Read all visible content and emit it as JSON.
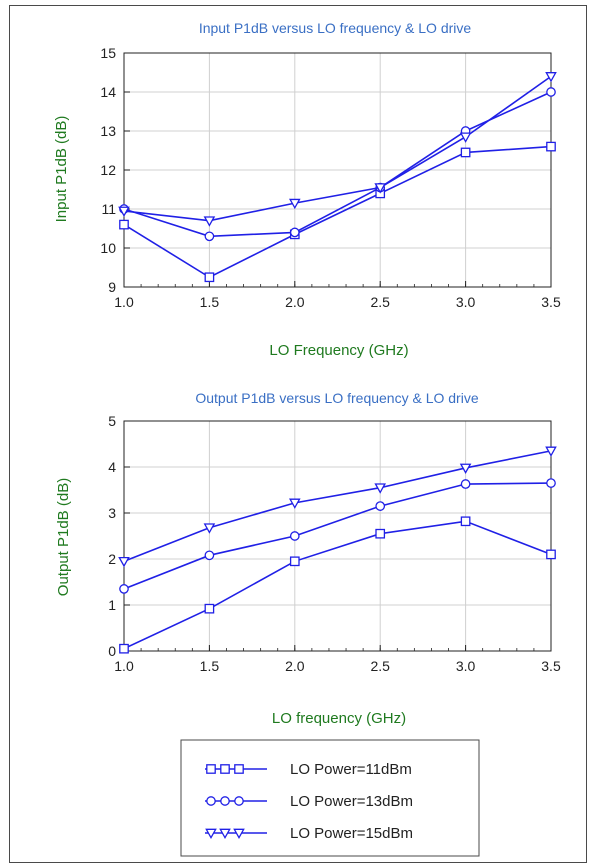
{
  "colors": {
    "title": "#3a6fc4",
    "axis_label": "#1f7a1f",
    "series": "#2020e6",
    "grid": "#d0d0d0",
    "frame": "#4a4a4a",
    "text": "#222222"
  },
  "chart_data": [
    {
      "type": "line",
      "title": "Input P1dB versus LO frequency & LO drive",
      "xlabel": "LO Frequency (GHz)",
      "ylabel": "Input P1dB (dB)",
      "xlim": [
        1.0,
        3.5
      ],
      "ylim": [
        9,
        15
      ],
      "xticks": [
        "1.0",
        "1.5",
        "2.0",
        "2.5",
        "3.0",
        "3.5"
      ],
      "yticks": [
        "9",
        "10",
        "11",
        "12",
        "13",
        "14",
        "15"
      ],
      "grid": true,
      "x": [
        1.0,
        1.5,
        2.0,
        2.5,
        3.0,
        3.5
      ],
      "series": [
        {
          "name": "LO Power=11dBm",
          "marker": "square",
          "values": [
            10.6,
            9.25,
            10.35,
            11.4,
            12.45,
            12.6
          ]
        },
        {
          "name": "LO Power=13dBm",
          "marker": "circle",
          "values": [
            11.0,
            10.3,
            10.4,
            11.55,
            13.0,
            14.0
          ]
        },
        {
          "name": "LO Power=15dBm",
          "marker": "triangle-down",
          "values": [
            10.95,
            10.7,
            11.15,
            11.55,
            12.85,
            14.4
          ]
        }
      ]
    },
    {
      "type": "line",
      "title": "Output P1dB versus LO frequency & LO drive",
      "xlabel": "LO frequency (GHz)",
      "ylabel": "Output P1dB (dB)",
      "xlim": [
        1.0,
        3.5
      ],
      "ylim": [
        0,
        5
      ],
      "xticks": [
        "1.0",
        "1.5",
        "2.0",
        "2.5",
        "3.0",
        "3.5"
      ],
      "yticks": [
        "0",
        "1",
        "2",
        "3",
        "4",
        "5"
      ],
      "grid": true,
      "x": [
        1.0,
        1.5,
        2.0,
        2.5,
        3.0,
        3.5
      ],
      "series": [
        {
          "name": "LO Power=11dBm",
          "marker": "square",
          "values": [
            0.05,
            0.92,
            1.95,
            2.55,
            2.82,
            2.1
          ]
        },
        {
          "name": "LO Power=13dBm",
          "marker": "circle",
          "values": [
            1.35,
            2.08,
            2.5,
            3.15,
            3.63,
            3.65
          ]
        },
        {
          "name": "LO Power=15dBm",
          "marker": "triangle-down",
          "values": [
            1.95,
            2.68,
            3.22,
            3.55,
            3.98,
            4.35
          ]
        }
      ]
    }
  ],
  "legend": {
    "placement": "bottom-center",
    "entries": [
      "LO Power=11dBm",
      "LO Power=13dBm",
      "LO Power=15dBm"
    ]
  }
}
